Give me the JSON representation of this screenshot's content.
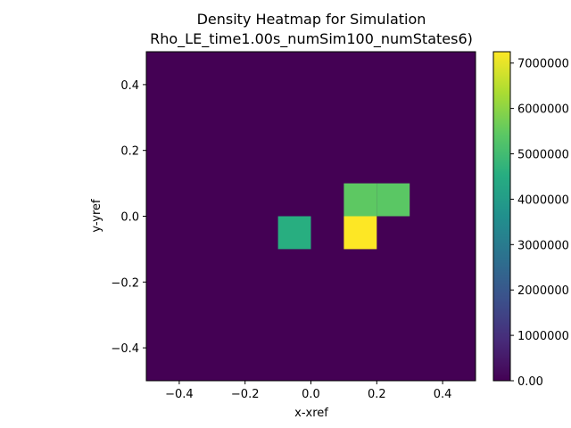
{
  "chart_data": {
    "type": "heatmap",
    "title_lines": [
      "Density Heatmap for Simulation",
      "Rho_LE_time1.00s_numSim100_numStates6)"
    ],
    "xlabel": "x-xref",
    "ylabel": "y-yref",
    "xlim": [
      -0.5,
      0.5
    ],
    "ylim": [
      -0.5,
      0.5
    ],
    "x_ticks": [
      -0.4,
      -0.2,
      0.0,
      0.2,
      0.4
    ],
    "x_tick_labels": [
      "−0.4",
      "−0.2",
      "0.0",
      "0.2",
      "0.4"
    ],
    "y_ticks": [
      -0.4,
      -0.2,
      0.0,
      0.2,
      0.4
    ],
    "y_tick_labels": [
      "−0.4",
      "−0.2",
      "0.0",
      "0.2",
      "0.4"
    ],
    "colormap": "viridis",
    "background_value": 0,
    "cells": [
      {
        "x0": -0.1,
        "x1": 0.0,
        "y0": -0.1,
        "y1": 0.0,
        "value": 4550000
      },
      {
        "x0": 0.1,
        "x1": 0.2,
        "y0": -0.1,
        "y1": 0.0,
        "value": 7250000
      },
      {
        "x0": 0.1,
        "x1": 0.2,
        "y0": 0.0,
        "y1": 0.1,
        "value": 5450000
      },
      {
        "x0": 0.2,
        "x1": 0.3,
        "y0": 0.0,
        "y1": 0.1,
        "value": 5400000
      }
    ],
    "colorbar": {
      "vmin": 0,
      "vmax": 7250000,
      "ticks": [
        0,
        1000000,
        2000000,
        3000000,
        4000000,
        5000000,
        6000000,
        7000000
      ],
      "tick_labels": [
        "0.00",
        "1000000",
        "2000000",
        "3000000",
        "4000000",
        "5000000",
        "6000000",
        "7000000"
      ]
    }
  }
}
